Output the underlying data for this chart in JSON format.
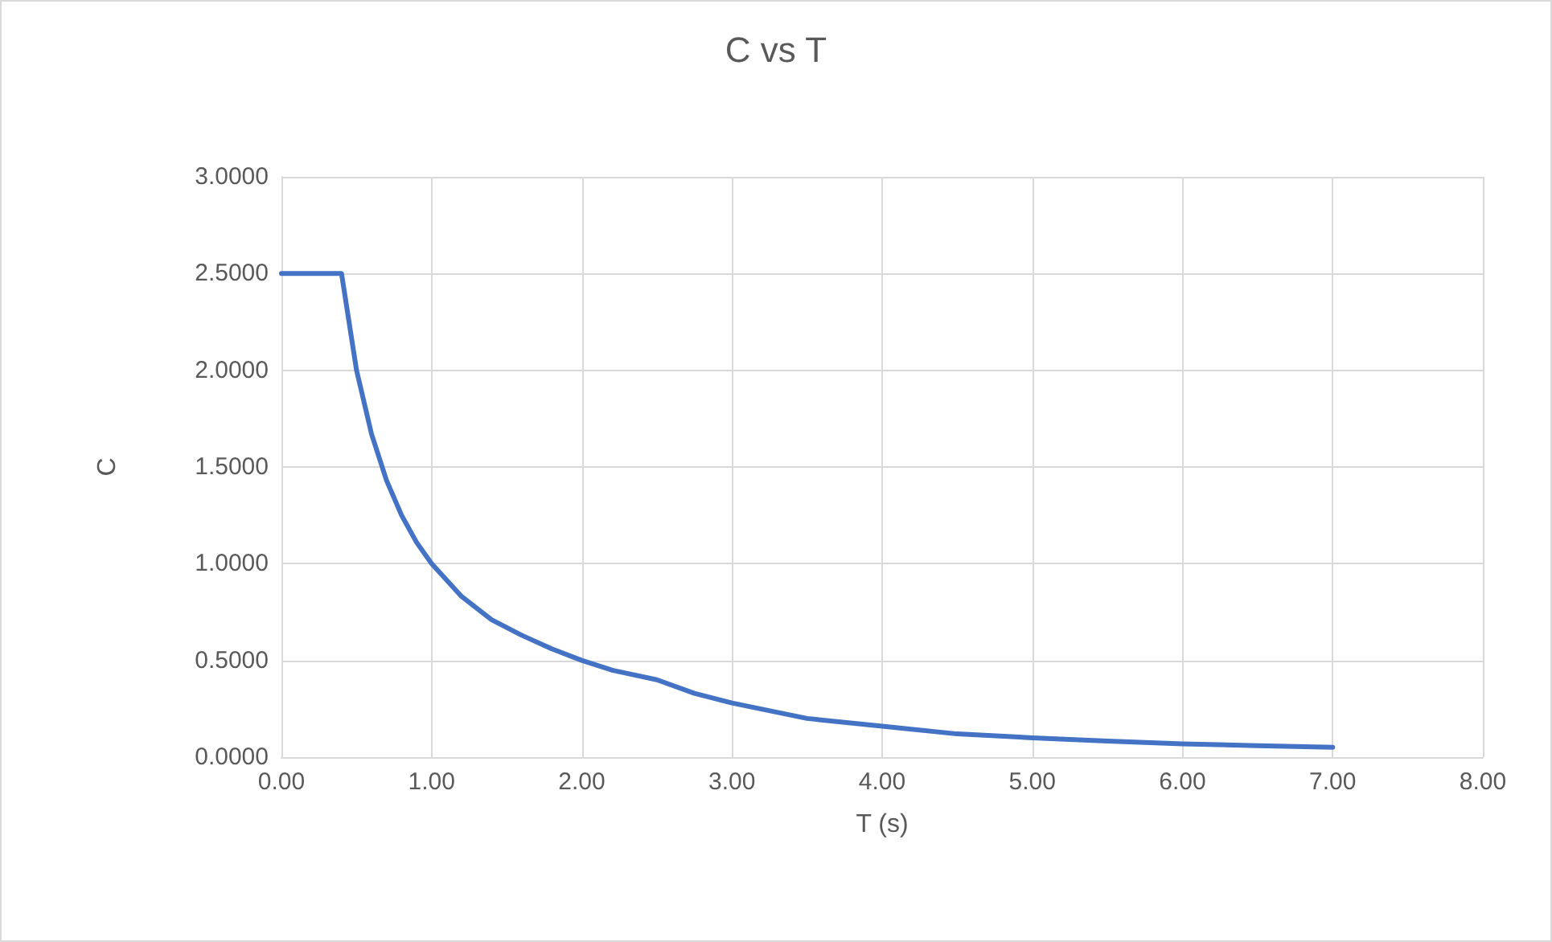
{
  "chart_data": {
    "type": "line",
    "title": "C vs T",
    "xlabel": "T (s)",
    "ylabel": "C",
    "x": [
      0,
      0.4,
      0.5,
      0.6,
      0.7,
      0.8,
      0.9,
      1.0,
      1.2,
      1.4,
      1.6,
      1.8,
      2.0,
      2.2,
      2.5,
      2.75,
      3.0,
      3.5,
      4.0,
      4.5,
      5.0,
      5.5,
      6.0,
      6.5,
      7.0
    ],
    "series": [
      {
        "color": "#4472c4",
        "values": [
          2.5,
          2.5,
          2.0,
          1.67,
          1.43,
          1.25,
          1.11,
          1.0,
          0.83,
          0.71,
          0.63,
          0.56,
          0.5,
          0.45,
          0.4,
          0.33,
          0.28,
          0.2,
          0.16,
          0.12,
          0.1,
          0.083,
          0.069,
          0.059,
          0.051
        ]
      }
    ],
    "xlim": [
      0,
      8
    ],
    "xticks": [
      {
        "value": 0,
        "label": "0.00"
      },
      {
        "value": 1,
        "label": "1.00"
      },
      {
        "value": 2,
        "label": "2.00"
      },
      {
        "value": 3,
        "label": "3.00"
      },
      {
        "value": 4,
        "label": "4.00"
      },
      {
        "value": 5,
        "label": "5.00"
      },
      {
        "value": 6,
        "label": "6.00"
      },
      {
        "value": 7,
        "label": "7.00"
      },
      {
        "value": 8,
        "label": "8.00"
      }
    ],
    "ylim": [
      0,
      3
    ],
    "yticks": [
      {
        "value": 0,
        "label": "0.0000"
      },
      {
        "value": 0.5,
        "label": "0.5000"
      },
      {
        "value": 1,
        "label": "1.0000"
      },
      {
        "value": 1.5,
        "label": "1.5000"
      },
      {
        "value": 2,
        "label": "2.0000"
      },
      {
        "value": 2.5,
        "label": "2.5000"
      },
      {
        "value": 3,
        "label": "3.0000"
      }
    ],
    "grid": true,
    "marker": "none",
    "line_style": "solid"
  }
}
